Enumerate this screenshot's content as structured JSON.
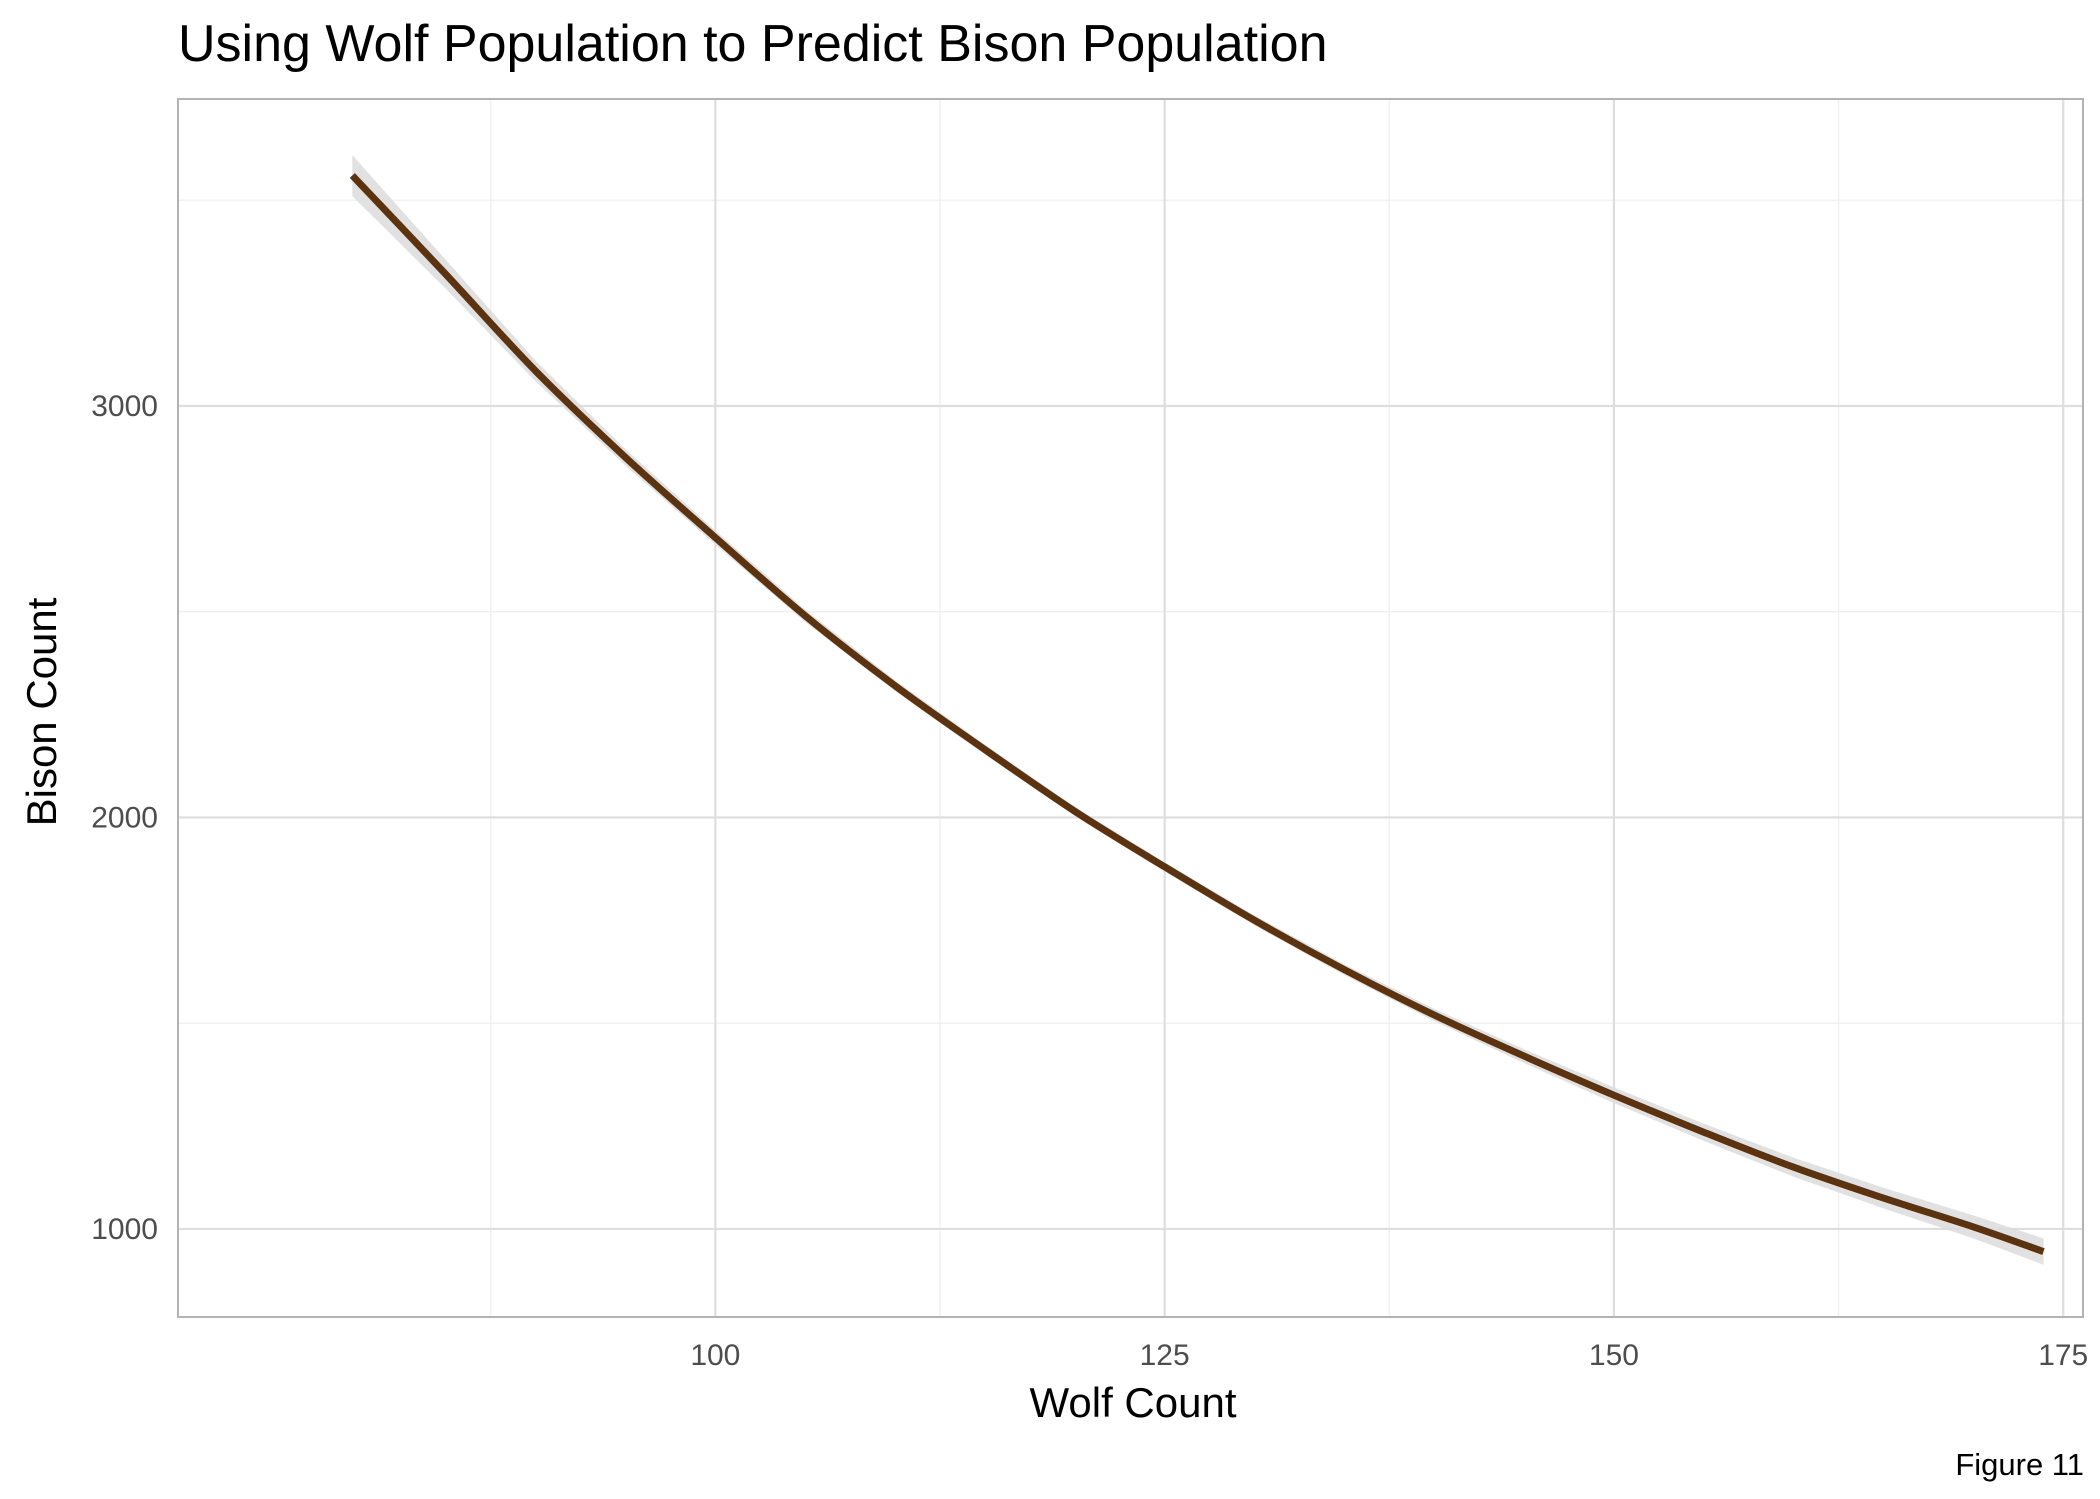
{
  "chart_data": {
    "type": "line",
    "title": "Using Wolf Population to Predict Bison Population",
    "xlabel": "Wolf Count",
    "ylabel": "Bison Count",
    "caption": "Figure 11",
    "xlim": [
      70.1,
      176.1
    ],
    "ylim": [
      786,
      3746
    ],
    "x_ticks": [
      100,
      125,
      150,
      175
    ],
    "x_tick_labels": [
      "100",
      "125",
      "150",
      "175"
    ],
    "x_minor_ticks": [
      87.5,
      112.5,
      137.5,
      162.5
    ],
    "y_ticks": [
      1000,
      2000,
      3000
    ],
    "y_tick_labels": [
      "1000",
      "2000",
      "3000"
    ],
    "y_minor_ticks": [
      1500,
      2500,
      3500
    ],
    "grid": true,
    "legend": "none",
    "series": [
      {
        "x": [
          79.8,
          85,
          90,
          95,
          100,
          105,
          110,
          115,
          120,
          125,
          130,
          135,
          140,
          145,
          150,
          155,
          160,
          165,
          170,
          173.9
        ],
        "y": [
          3560,
          3320,
          3085,
          2875,
          2680,
          2490,
          2320,
          2165,
          2015,
          1880,
          1750,
          1630,
          1520,
          1420,
          1325,
          1235,
          1150,
          1075,
          1005,
          945
        ],
        "ci_upper": [
          3610,
          3355,
          3110,
          2895,
          2697,
          2505,
          2333,
          2177,
          2026,
          1891,
          1762,
          1643,
          1535,
          1437,
          1344,
          1256,
          1173,
          1100,
          1033,
          977
        ],
        "ci_lower": [
          3510,
          3285,
          3060,
          2855,
          2663,
          2475,
          2307,
          2153,
          2004,
          1869,
          1738,
          1617,
          1505,
          1403,
          1306,
          1214,
          1127,
          1050,
          977,
          913
        ],
        "color": "#5c3310",
        "band_color": "#dcdcdc"
      }
    ],
    "colors": {
      "line": "#5c3310",
      "band": "#dcdcdc",
      "grid_major": "#dedede",
      "grid_minor": "#efefef",
      "panel_border": "#b3b3b3",
      "tick_text": "#4d4d4d"
    }
  }
}
